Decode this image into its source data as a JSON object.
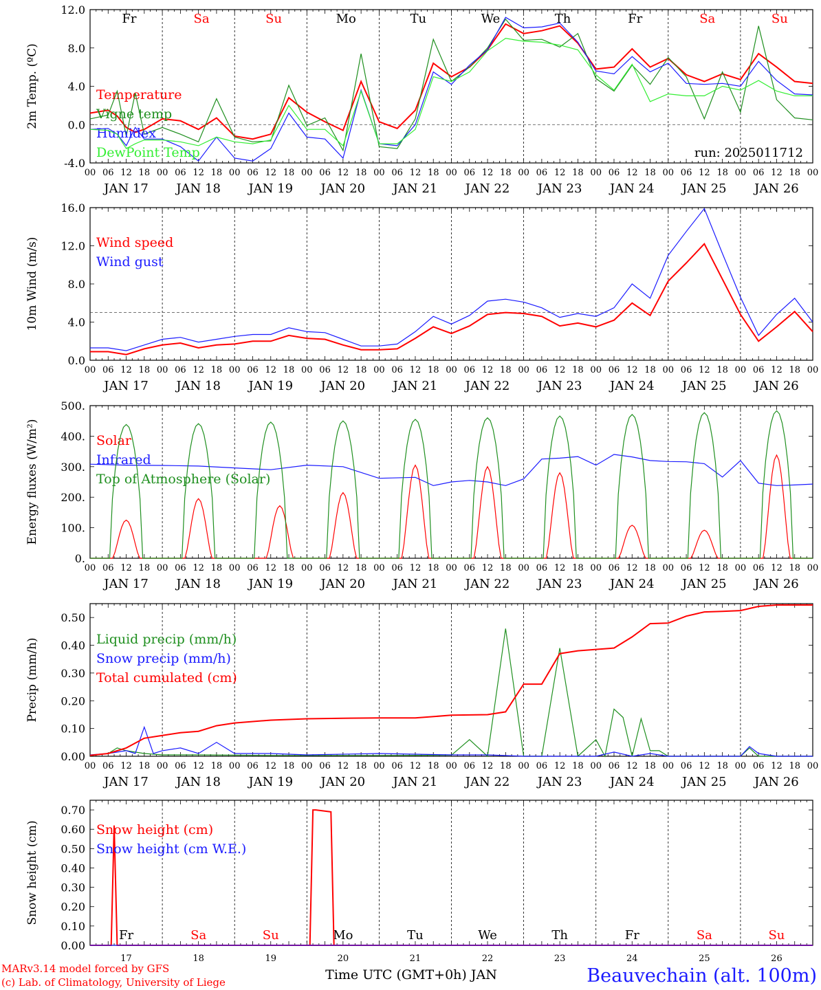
{
  "run_label": "run: 2025011712",
  "footer": {
    "model_line": "MARv3.14 model forced by GFS",
    "lab_line": "(c) Lab. of Climatology, University of Liege",
    "time_axis": "Time UTC (GMT+0h) JAN",
    "station": "Beauvechain (alt. 100m)"
  },
  "colors": {
    "red": "#ff0000",
    "green": "#1f8f1f",
    "blue": "#1a1aff",
    "light_green": "#33ee33",
    "weekend": "#ff0000",
    "weekday": "#000000"
  },
  "days": [
    {
      "abbr": "Fr",
      "date": "JAN 17",
      "num": "17",
      "weekend": false
    },
    {
      "abbr": "Sa",
      "date": "JAN 18",
      "num": "18",
      "weekend": true
    },
    {
      "abbr": "Su",
      "date": "JAN 19",
      "num": "19",
      "weekend": true
    },
    {
      "abbr": "Mo",
      "date": "JAN 20",
      "num": "20",
      "weekend": false
    },
    {
      "abbr": "Tu",
      "date": "JAN 21",
      "num": "21",
      "weekend": false
    },
    {
      "abbr": "We",
      "date": "JAN 22",
      "num": "22",
      "weekend": false
    },
    {
      "abbr": "Th",
      "date": "JAN 23",
      "num": "23",
      "weekend": false
    },
    {
      "abbr": "Fr",
      "date": "JAN 24",
      "num": "24",
      "weekend": false
    },
    {
      "abbr": "Sa",
      "date": "JAN 25",
      "num": "25",
      "weekend": true
    },
    {
      "abbr": "Su",
      "date": "JAN 26",
      "num": "26",
      "weekend": true
    }
  ],
  "hour_ticks": [
    "00",
    "06",
    "12",
    "18"
  ],
  "chart_data": [
    {
      "type": "line",
      "ylabel": "2m Temp. (ºC)",
      "ylim": [
        -4,
        12
      ],
      "yticks": [
        "-4.0",
        "0.0",
        "4.0",
        "8.0",
        "12.0"
      ],
      "xlim_hours": [
        0,
        240
      ],
      "ref_line": 0,
      "series": [
        {
          "name": "Temperature",
          "color": "red",
          "x": [
            0,
            6,
            9,
            12,
            15,
            18,
            24,
            30,
            36,
            42,
            48,
            54,
            60,
            66,
            72,
            78,
            84,
            90,
            96,
            102,
            108,
            114,
            120,
            126,
            132,
            138,
            144,
            150,
            156,
            162,
            168,
            174,
            180,
            186,
            192,
            198,
            204,
            210,
            216,
            222,
            228,
            234,
            240
          ],
          "y": [
            1.2,
            1.5,
            0.9,
            -0.3,
            -0.8,
            -0.5,
            0.6,
            0.4,
            -0.5,
            0.7,
            -1.2,
            -1.5,
            -1.0,
            2.8,
            1.3,
            0.3,
            -0.6,
            4.5,
            0.3,
            -0.4,
            1.5,
            6.4,
            5.0,
            6.0,
            7.8,
            10.5,
            9.5,
            9.8,
            10.3,
            8.5,
            5.8,
            6.0,
            7.9,
            6.0,
            6.9,
            5.2,
            4.5,
            5.3,
            4.7,
            7.4,
            6.0,
            4.5,
            4.3
          ]
        },
        {
          "name": "Vigne temp",
          "color": "green",
          "x": [
            0,
            6,
            9,
            12,
            15,
            18,
            24,
            30,
            36,
            42,
            48,
            54,
            60,
            66,
            72,
            78,
            84,
            90,
            96,
            102,
            108,
            114,
            120,
            126,
            132,
            138,
            144,
            150,
            156,
            162,
            168,
            174,
            180,
            186,
            192,
            198,
            204,
            210,
            216,
            222,
            228,
            234,
            240
          ],
          "y": [
            0.6,
            1.0,
            3.5,
            -1.2,
            3.3,
            -1.0,
            -0.3,
            -1.0,
            -1.8,
            2.7,
            -1.3,
            -1.8,
            -1.7,
            4.1,
            -0.1,
            0.7,
            -2.7,
            7.4,
            -2.3,
            -2.5,
            0.6,
            8.9,
            4.5,
            6.0,
            8.0,
            11.0,
            8.8,
            8.9,
            8.1,
            9.5,
            4.8,
            3.5,
            6.2,
            4.2,
            7.0,
            5.0,
            0.6,
            5.5,
            1.3,
            10.3,
            2.6,
            0.7,
            0.5
          ]
        },
        {
          "name": "Humidex",
          "color": "blue",
          "x": [
            0,
            6,
            9,
            12,
            15,
            18,
            24,
            30,
            36,
            42,
            48,
            54,
            60,
            66,
            72,
            78,
            84,
            90,
            96,
            102,
            108,
            114,
            120,
            126,
            132,
            138,
            144,
            150,
            156,
            162,
            168,
            174,
            180,
            186,
            192,
            198,
            204,
            210,
            216,
            222,
            228,
            234,
            240
          ],
          "y": [
            -0.5,
            -0.4,
            -1.0,
            -2.2,
            -0.3,
            -1.5,
            -1.5,
            -2.3,
            -3.8,
            -1.3,
            -3.5,
            -3.8,
            -2.5,
            1.2,
            -1.3,
            -1.5,
            -3.5,
            3.6,
            -2.0,
            -2.2,
            0.0,
            5.5,
            4.2,
            6.2,
            7.8,
            11.2,
            10.1,
            10.2,
            10.6,
            8.6,
            5.6,
            5.3,
            7.1,
            5.5,
            6.4,
            4.3,
            4.2,
            4.3,
            4.0,
            6.6,
            4.6,
            3.2,
            3.1
          ]
        },
        {
          "name": "DewPoint Temp",
          "color": "light_green",
          "x": [
            0,
            6,
            9,
            12,
            15,
            18,
            24,
            30,
            36,
            42,
            48,
            54,
            60,
            66,
            72,
            78,
            84,
            90,
            96,
            102,
            108,
            114,
            120,
            126,
            132,
            138,
            144,
            150,
            156,
            162,
            168,
            174,
            180,
            186,
            192,
            198,
            204,
            210,
            216,
            222,
            228,
            234,
            240
          ],
          "y": [
            -0.5,
            -0.6,
            -1.0,
            -2.5,
            -2.0,
            -1.6,
            -1.6,
            -1.8,
            -2.2,
            -1.3,
            -1.8,
            -2.0,
            -1.6,
            2.0,
            -0.5,
            -0.5,
            -2.2,
            3.5,
            -2.0,
            -2.0,
            -0.5,
            5.0,
            4.5,
            5.5,
            7.7,
            9.0,
            8.7,
            8.6,
            8.3,
            7.8,
            5.2,
            3.6,
            6.3,
            2.4,
            3.2,
            3.0,
            3.0,
            4.0,
            3.6,
            4.6,
            3.5,
            3.0,
            3.0
          ]
        }
      ]
    },
    {
      "type": "line",
      "ylabel": "10m Wind (m/s)",
      "ylim": [
        0,
        16
      ],
      "yticks": [
        "0.0",
        "4.0",
        "8.0",
        "12.0",
        "16.0"
      ],
      "xlim_hours": [
        0,
        240
      ],
      "ref_line": 5,
      "series": [
        {
          "name": "Wind speed",
          "color": "red",
          "x": [
            0,
            6,
            12,
            18,
            24,
            30,
            36,
            42,
            48,
            54,
            60,
            66,
            72,
            78,
            84,
            90,
            96,
            102,
            108,
            114,
            120,
            126,
            132,
            138,
            144,
            150,
            156,
            162,
            168,
            174,
            180,
            186,
            192,
            198,
            204,
            210,
            216,
            222,
            228,
            234,
            240
          ],
          "y": [
            0.9,
            0.9,
            0.6,
            1.2,
            1.6,
            1.8,
            1.3,
            1.6,
            1.7,
            2.0,
            2.0,
            2.6,
            2.3,
            2.2,
            1.6,
            1.1,
            1.1,
            1.2,
            2.3,
            3.5,
            2.8,
            3.6,
            4.8,
            5.0,
            4.9,
            4.6,
            3.6,
            3.9,
            3.5,
            4.2,
            6.0,
            4.7,
            8.3,
            10.2,
            12.2,
            8.5,
            4.8,
            2.0,
            3.5,
            5.1,
            3.0
          ]
        },
        {
          "name": "Wind gust",
          "color": "blue",
          "x": [
            0,
            6,
            12,
            18,
            24,
            30,
            36,
            42,
            48,
            54,
            60,
            66,
            72,
            78,
            84,
            90,
            96,
            102,
            108,
            114,
            120,
            126,
            132,
            138,
            144,
            150,
            156,
            162,
            168,
            174,
            180,
            186,
            192,
            198,
            204,
            210,
            216,
            222,
            228,
            234,
            240
          ],
          "y": [
            1.3,
            1.3,
            1.0,
            1.6,
            2.2,
            2.4,
            1.9,
            2.2,
            2.5,
            2.7,
            2.7,
            3.4,
            3.0,
            2.9,
            2.2,
            1.5,
            1.5,
            1.7,
            3.0,
            4.6,
            3.8,
            4.7,
            6.2,
            6.4,
            6.1,
            5.5,
            4.5,
            4.9,
            4.6,
            5.5,
            8.0,
            6.5,
            11.0,
            13.5,
            15.9,
            11.2,
            6.6,
            2.6,
            4.8,
            6.5,
            4.0
          ]
        }
      ]
    },
    {
      "type": "line",
      "ylabel": "Energy fluxes (W/m²)",
      "ylim": [
        0,
        500
      ],
      "yticks": [
        "0.",
        "100.",
        "200.",
        "300.",
        "400.",
        "500."
      ],
      "xlim_hours": [
        0,
        240
      ],
      "series": [
        {
          "name": "Solar",
          "color": "red",
          "peak_hours": [
            12,
            12,
            15,
            12,
            12,
            12,
            12,
            12,
            12,
            12
          ],
          "peaks": [
            125,
            195,
            172,
            215,
            305,
            300,
            280,
            108,
            92,
            338
          ]
        },
        {
          "name": "Infrared",
          "color": "blue",
          "x": [
            0,
            12,
            24,
            36,
            48,
            60,
            72,
            84,
            96,
            108,
            114,
            120,
            126,
            132,
            138,
            144,
            150,
            156,
            162,
            168,
            174,
            180,
            186,
            192,
            198,
            204,
            210,
            216,
            222,
            228,
            234,
            240
          ],
          "y": [
            308,
            305,
            304,
            302,
            296,
            290,
            305,
            300,
            262,
            265,
            238,
            250,
            255,
            250,
            238,
            260,
            325,
            328,
            333,
            305,
            340,
            332,
            320,
            317,
            316,
            310,
            266,
            320,
            246,
            238,
            240,
            243
          ]
        },
        {
          "name": "Top of Atmosphere (Solar)",
          "color": "green",
          "peak_hours": [
            12,
            12,
            12,
            12,
            12,
            12,
            12,
            12,
            12,
            12
          ],
          "peaks": [
            438,
            441,
            446,
            450,
            455,
            460,
            466,
            471,
            477,
            483
          ]
        }
      ]
    },
    {
      "type": "line",
      "ylabel": "Precip (mm/h)",
      "ylim": [
        0,
        0.55
      ],
      "yticks": [
        "0.00",
        "0.10",
        "0.20",
        "0.30",
        "0.40",
        "0.50"
      ],
      "xlim_hours": [
        0,
        240
      ],
      "series": [
        {
          "name": "Liquid precip (mm/h)",
          "color": "green",
          "x": [
            0,
            6,
            9,
            12,
            18,
            24,
            36,
            48,
            60,
            72,
            96,
            120,
            126,
            132,
            138,
            144,
            150,
            156,
            162,
            168,
            171,
            174,
            177,
            180,
            183,
            186,
            189,
            192,
            198,
            204,
            210,
            216,
            219,
            222,
            228,
            240
          ],
          "y": [
            0.002,
            0.01,
            0.03,
            0.02,
            0.01,
            0.005,
            0.005,
            0.004,
            0.003,
            0.003,
            0.003,
            0.004,
            0.06,
            0.0,
            0.46,
            0.0,
            0.0,
            0.39,
            0.0,
            0.06,
            0.0,
            0.17,
            0.14,
            0.0,
            0.135,
            0.02,
            0.02,
            0.0,
            0.0,
            0.0,
            0.0,
            0.0,
            0.03,
            0.0,
            0.0,
            0.0
          ]
        },
        {
          "name": "Snow precip (mm/h)",
          "color": "blue",
          "x": [
            0,
            6,
            12,
            15,
            18,
            21,
            24,
            30,
            36,
            42,
            48,
            60,
            72,
            96,
            120,
            126,
            132,
            144,
            156,
            168,
            174,
            180,
            186,
            192,
            204,
            216,
            219,
            222,
            228,
            240
          ],
          "y": [
            0.005,
            0.01,
            0.02,
            0.01,
            0.105,
            0.01,
            0.02,
            0.03,
            0.01,
            0.05,
            0.01,
            0.01,
            0.005,
            0.01,
            0.005,
            0.005,
            0.005,
            0.0,
            0.0,
            0.0,
            0.015,
            0.0,
            0.01,
            0.0,
            0.0,
            0.0,
            0.035,
            0.01,
            0.0,
            0.0
          ]
        },
        {
          "name": "Total cumulated (cm)",
          "color": "red",
          "x": [
            0,
            6,
            12,
            18,
            24,
            30,
            36,
            42,
            48,
            60,
            72,
            84,
            96,
            108,
            120,
            132,
            138,
            144,
            147,
            150,
            156,
            162,
            168,
            174,
            180,
            186,
            192,
            198,
            204,
            210,
            216,
            222,
            228,
            240
          ],
          "y": [
            0.003,
            0.01,
            0.03,
            0.065,
            0.075,
            0.085,
            0.09,
            0.11,
            0.12,
            0.13,
            0.135,
            0.137,
            0.138,
            0.138,
            0.148,
            0.15,
            0.16,
            0.26,
            0.26,
            0.26,
            0.37,
            0.38,
            0.385,
            0.39,
            0.43,
            0.478,
            0.48,
            0.505,
            0.52,
            0.522,
            0.525,
            0.54,
            0.545,
            0.545
          ]
        }
      ]
    },
    {
      "type": "line",
      "ylabel": "Snow height (cm)",
      "ylim": [
        0,
        0.75
      ],
      "yticks": [
        "0.00",
        "0.10",
        "0.20",
        "0.30",
        "0.40",
        "0.50",
        "0.60",
        "0.70"
      ],
      "xlim_hours": [
        0,
        240
      ],
      "series": [
        {
          "name": "Snow height (cm)",
          "color": "red",
          "x": [
            0,
            7,
            8,
            9,
            240
          ],
          "y": [
            0,
            0,
            0.62,
            0,
            0
          ],
          "x2": [
            73,
            74,
            75,
            80,
            81,
            82
          ],
          "y2": [
            0,
            0.7,
            0.7,
            0.69,
            0,
            0
          ]
        },
        {
          "name": "Snow height (cm W.E.)",
          "color": "blue",
          "x": [
            0,
            240
          ],
          "y": [
            0,
            0
          ]
        }
      ]
    }
  ]
}
